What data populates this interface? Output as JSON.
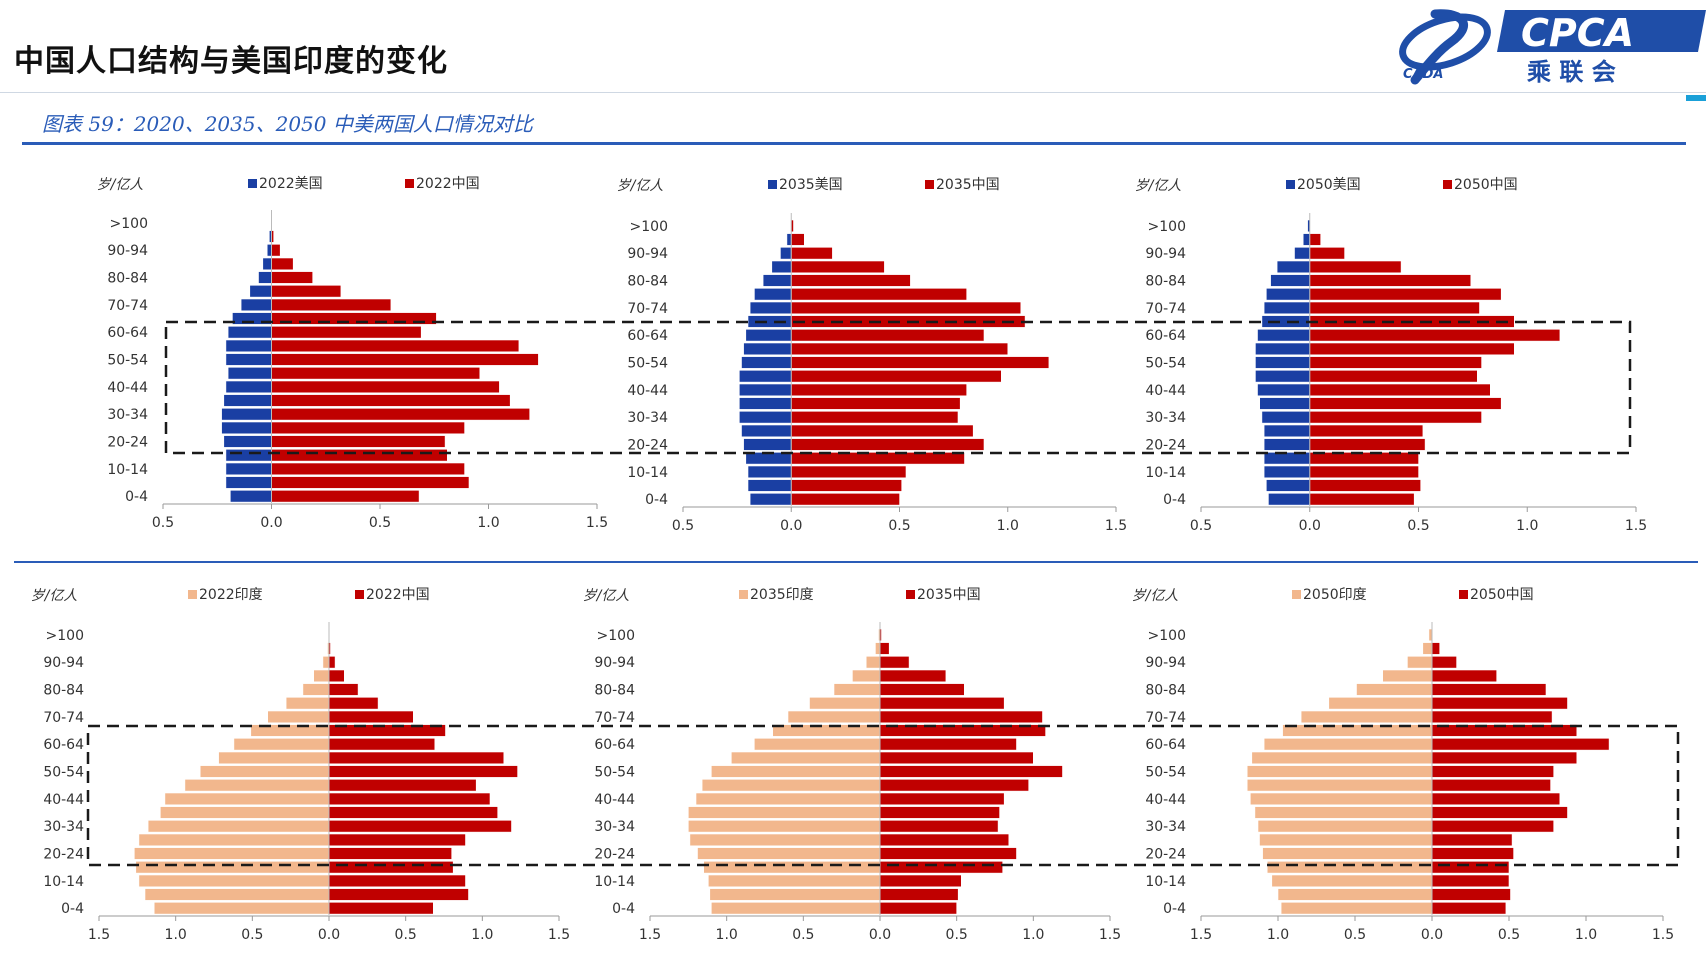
{
  "page_title": "中国人口结构与美国印度的变化",
  "figure_caption": "图表 59：2020、2035、2050 中美两国人口情况对比",
  "logo": {
    "left_mark": "CADA",
    "brand": "CPCA",
    "brand_cn": "乘 联 会"
  },
  "colors": {
    "usa": "#1a3fa3",
    "china": "#c00000",
    "india": "#f2b78d",
    "caption": "#2a5cb8"
  },
  "chart_data": [
    {
      "type": "population-pyramid",
      "id": "us-2022",
      "categories": [
        "0-4",
        "5-9",
        "10-14",
        "15-19",
        "20-24",
        "25-29",
        "30-34",
        "35-39",
        "40-44",
        "45-49",
        "50-54",
        "55-59",
        "60-64",
        "65-69",
        "70-74",
        "75-79",
        "80-84",
        "85-89",
        "90-94",
        "95-99",
        ">100"
      ],
      "tick_labels": [
        "0-4",
        "10-14",
        "20-24",
        "30-34",
        "40-44",
        "50-54",
        "60-64",
        "70-74",
        "80-84",
        "90-94",
        ">100"
      ],
      "ylabel": "岁/亿人",
      "xticks": [
        "0.5",
        "0.0",
        "0.5",
        "1.0",
        "1.5"
      ],
      "xlim": [
        -0.5,
        1.5
      ],
      "legend": [
        "2022美国",
        "2022中国"
      ],
      "series": [
        {
          "name": "2022美国",
          "side": "left",
          "color": "#1a3fa3",
          "values": [
            0.19,
            0.21,
            0.21,
            0.21,
            0.22,
            0.23,
            0.23,
            0.22,
            0.21,
            0.2,
            0.21,
            0.21,
            0.2,
            0.18,
            0.14,
            0.1,
            0.06,
            0.04,
            0.02,
            0.01,
            0.0
          ]
        },
        {
          "name": "2022中国",
          "side": "right",
          "color": "#c00000",
          "values": [
            0.68,
            0.91,
            0.89,
            0.81,
            0.8,
            0.89,
            1.19,
            1.1,
            1.05,
            0.96,
            1.23,
            1.14,
            0.69,
            0.76,
            0.55,
            0.32,
            0.19,
            0.1,
            0.04,
            0.01,
            0.0
          ]
        }
      ]
    },
    {
      "type": "population-pyramid",
      "id": "us-2035",
      "categories": [
        "0-4",
        "5-9",
        "10-14",
        "15-19",
        "20-24",
        "25-29",
        "30-34",
        "35-39",
        "40-44",
        "45-49",
        "50-54",
        "55-59",
        "60-64",
        "65-69",
        "70-74",
        "75-79",
        "80-84",
        "85-89",
        "90-94",
        "95-99",
        ">100"
      ],
      "tick_labels": [
        "0-4",
        "10-14",
        "20-24",
        "30-34",
        "40-44",
        "50-54",
        "60-64",
        "70-74",
        "80-84",
        "90-94",
        ">100"
      ],
      "ylabel": "岁/亿人",
      "xticks": [
        "0.5",
        "0.0",
        "0.5",
        "1.0",
        "1.5"
      ],
      "xlim": [
        -0.5,
        1.5
      ],
      "legend": [
        "2035美国",
        "2035中国"
      ],
      "series": [
        {
          "name": "2035美国",
          "side": "left",
          "color": "#1a3fa3",
          "values": [
            0.19,
            0.2,
            0.2,
            0.21,
            0.22,
            0.23,
            0.24,
            0.24,
            0.24,
            0.24,
            0.23,
            0.22,
            0.21,
            0.2,
            0.19,
            0.17,
            0.13,
            0.09,
            0.05,
            0.02,
            0.0
          ]
        },
        {
          "name": "2035中国",
          "side": "right",
          "color": "#c00000",
          "values": [
            0.5,
            0.51,
            0.53,
            0.8,
            0.89,
            0.84,
            0.77,
            0.78,
            0.81,
            0.97,
            1.19,
            1.0,
            0.89,
            1.08,
            1.06,
            0.81,
            0.55,
            0.43,
            0.19,
            0.06,
            0.01
          ]
        }
      ]
    },
    {
      "type": "population-pyramid",
      "id": "us-2050",
      "categories": [
        "0-4",
        "5-9",
        "10-14",
        "15-19",
        "20-24",
        "25-29",
        "30-34",
        "35-39",
        "40-44",
        "45-49",
        "50-54",
        "55-59",
        "60-64",
        "65-69",
        "70-74",
        "75-79",
        "80-84",
        "85-89",
        "90-94",
        "95-99",
        ">100"
      ],
      "tick_labels": [
        "0-4",
        "10-14",
        "20-24",
        "30-34",
        "40-44",
        "50-54",
        "60-64",
        "70-74",
        "80-84",
        "90-94",
        ">100"
      ],
      "ylabel": "岁/亿人",
      "xticks": [
        "0.5",
        "0.0",
        "0.5",
        "1.0",
        "1.5"
      ],
      "xlim": [
        -0.5,
        1.5
      ],
      "legend": [
        "2050美国",
        "2050中国"
      ],
      "series": [
        {
          "name": "2050美国",
          "side": "left",
          "color": "#1a3fa3",
          "values": [
            0.19,
            0.2,
            0.21,
            0.21,
            0.21,
            0.21,
            0.22,
            0.23,
            0.24,
            0.25,
            0.25,
            0.25,
            0.24,
            0.22,
            0.21,
            0.2,
            0.18,
            0.15,
            0.07,
            0.03,
            0.01
          ]
        },
        {
          "name": "2050中国",
          "side": "right",
          "color": "#c00000",
          "values": [
            0.48,
            0.51,
            0.5,
            0.5,
            0.53,
            0.52,
            0.79,
            0.88,
            0.83,
            0.77,
            0.79,
            0.94,
            1.15,
            0.94,
            0.78,
            0.88,
            0.74,
            0.42,
            0.16,
            0.05,
            0.0
          ]
        }
      ]
    },
    {
      "type": "population-pyramid",
      "id": "in-2022",
      "categories": [
        "0-4",
        "5-9",
        "10-14",
        "15-19",
        "20-24",
        "25-29",
        "30-34",
        "35-39",
        "40-44",
        "45-49",
        "50-54",
        "55-59",
        "60-64",
        "65-69",
        "70-74",
        "75-79",
        "80-84",
        "85-89",
        "90-94",
        "95-99",
        ">100"
      ],
      "tick_labels": [
        "0-4",
        "10-14",
        "20-24",
        "30-34",
        "40-44",
        "50-54",
        "60-64",
        "70-74",
        "80-84",
        "90-94",
        ">100"
      ],
      "ylabel": "岁/亿人",
      "xticks": [
        "1.5",
        "1.0",
        "0.5",
        "0.0",
        "0.5",
        "1.0",
        "1.5"
      ],
      "xlim": [
        -1.5,
        1.5
      ],
      "legend": [
        "2022印度",
        "2022中国"
      ],
      "series": [
        {
          "name": "2022印度",
          "side": "left",
          "color": "#f2b78d",
          "values": [
            1.14,
            1.2,
            1.24,
            1.26,
            1.27,
            1.24,
            1.18,
            1.1,
            1.07,
            0.94,
            0.84,
            0.72,
            0.62,
            0.51,
            0.4,
            0.28,
            0.17,
            0.1,
            0.04,
            0.01,
            0.0
          ]
        },
        {
          "name": "2022中国",
          "side": "right",
          "color": "#c00000",
          "values": [
            0.68,
            0.91,
            0.89,
            0.81,
            0.8,
            0.89,
            1.19,
            1.1,
            1.05,
            0.96,
            1.23,
            1.14,
            0.69,
            0.76,
            0.55,
            0.32,
            0.19,
            0.1,
            0.04,
            0.01,
            0.0
          ]
        }
      ]
    },
    {
      "type": "population-pyramid",
      "id": "in-2035",
      "categories": [
        "0-4",
        "5-9",
        "10-14",
        "15-19",
        "20-24",
        "25-29",
        "30-34",
        "35-39",
        "40-44",
        "45-49",
        "50-54",
        "55-59",
        "60-64",
        "65-69",
        "70-74",
        "75-79",
        "80-84",
        "85-89",
        "90-94",
        "95-99",
        ">100"
      ],
      "tick_labels": [
        "0-4",
        "10-14",
        "20-24",
        "30-34",
        "40-44",
        "50-54",
        "60-64",
        "70-74",
        "80-84",
        "90-94",
        ">100"
      ],
      "ylabel": "岁/亿人",
      "xticks": [
        "1.5",
        "1.0",
        "0.5",
        "0.0",
        "0.5",
        "1.0",
        "1.5"
      ],
      "xlim": [
        -1.5,
        1.5
      ],
      "legend": [
        "2035印度",
        "2035中国"
      ],
      "series": [
        {
          "name": "2035印度",
          "side": "left",
          "color": "#f2b78d",
          "values": [
            1.1,
            1.11,
            1.12,
            1.15,
            1.19,
            1.24,
            1.25,
            1.25,
            1.2,
            1.16,
            1.1,
            0.97,
            0.82,
            0.7,
            0.6,
            0.46,
            0.3,
            0.18,
            0.09,
            0.03,
            0.01
          ]
        },
        {
          "name": "2035中国",
          "side": "right",
          "color": "#c00000",
          "values": [
            0.5,
            0.51,
            0.53,
            0.8,
            0.89,
            0.84,
            0.77,
            0.78,
            0.81,
            0.97,
            1.19,
            1.0,
            0.89,
            1.08,
            1.06,
            0.81,
            0.55,
            0.43,
            0.19,
            0.06,
            0.01
          ]
        }
      ]
    },
    {
      "type": "population-pyramid",
      "id": "in-2050",
      "categories": [
        "0-4",
        "5-9",
        "10-14",
        "15-19",
        "20-24",
        "25-29",
        "30-34",
        "35-39",
        "40-44",
        "45-49",
        "50-54",
        "55-59",
        "60-64",
        "65-69",
        "70-74",
        "75-79",
        "80-84",
        "85-89",
        "90-94",
        "95-99",
        ">100"
      ],
      "tick_labels": [
        "0-4",
        "10-14",
        "20-24",
        "30-34",
        "40-44",
        "50-54",
        "60-64",
        "70-74",
        "80-84",
        "90-94",
        ">100"
      ],
      "ylabel": "岁/亿人",
      "xticks": [
        "1.5",
        "1.0",
        "0.5",
        "0.0",
        "0.5",
        "1.0",
        "1.5"
      ],
      "xlim": [
        -1.5,
        1.5
      ],
      "legend": [
        "2050印度",
        "2050中国"
      ],
      "series": [
        {
          "name": "2050印度",
          "side": "left",
          "color": "#f2b78d",
          "values": [
            0.98,
            1.0,
            1.04,
            1.07,
            1.1,
            1.12,
            1.13,
            1.15,
            1.18,
            1.2,
            1.2,
            1.17,
            1.09,
            0.97,
            0.85,
            0.67,
            0.49,
            0.32,
            0.16,
            0.06,
            0.02
          ]
        },
        {
          "name": "2050中国",
          "side": "right",
          "color": "#c00000",
          "values": [
            0.48,
            0.51,
            0.5,
            0.5,
            0.53,
            0.52,
            0.79,
            0.88,
            0.83,
            0.77,
            0.79,
            0.94,
            1.15,
            0.94,
            0.78,
            0.88,
            0.74,
            0.42,
            0.16,
            0.05,
            0.0
          ]
        }
      ]
    }
  ]
}
